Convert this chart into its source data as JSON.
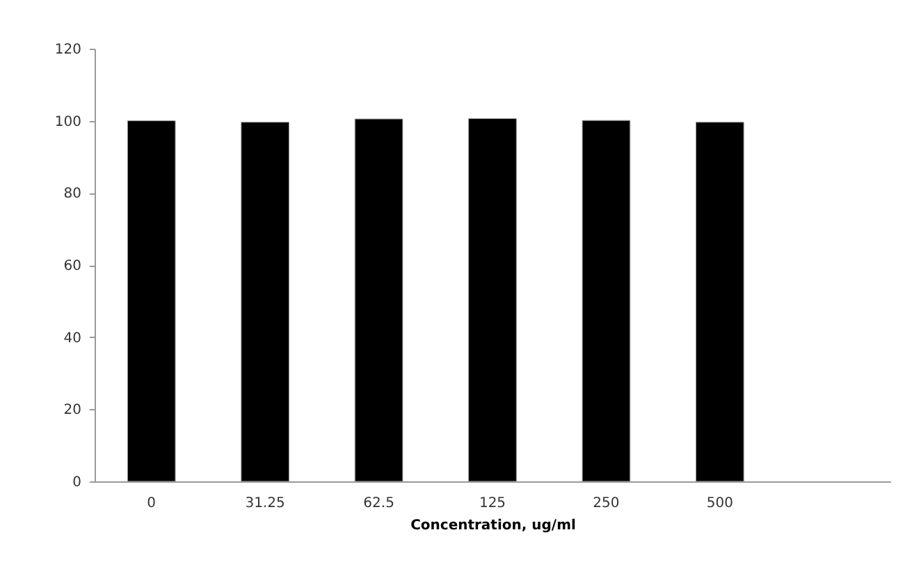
{
  "chart_data": {
    "type": "bar",
    "xlabel": "Concentration, ug/ml",
    "categories": [
      "0",
      "31.25",
      "62.5",
      "125",
      "250",
      "500",
      null
    ],
    "values": [
      100,
      99.6,
      100.5,
      100.6,
      100.1,
      99.6,
      null
    ],
    "color": "#000000",
    "ylim": [
      0,
      120
    ],
    "yticks": [
      0,
      20,
      40,
      60,
      80,
      100,
      120
    ],
    "grid": false
  }
}
